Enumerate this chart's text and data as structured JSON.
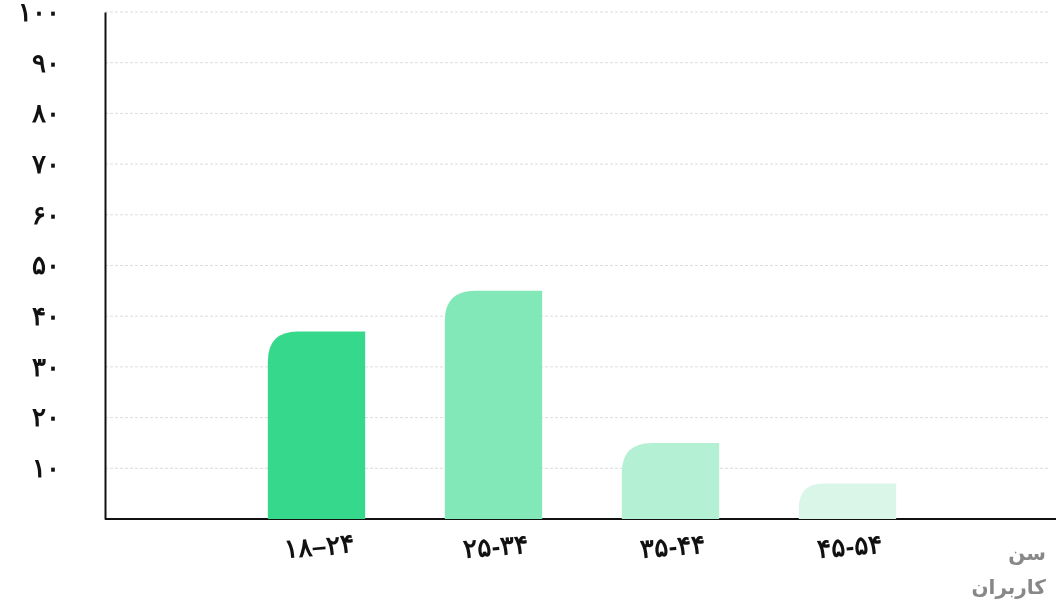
{
  "chart_data": {
    "type": "bar",
    "xlabel": "سن",
    "annotations": [
      "کاربران"
    ],
    "categories": [
      "۱۸–۲۴",
      "۲۵-۳۴",
      "۳۵-۴۴",
      "۴۵-۵۴"
    ],
    "values": [
      37,
      45,
      15,
      7
    ],
    "colors": [
      "#36d98c",
      "#82e8b8",
      "#b3f0d4",
      "#d9f6e8"
    ],
    "ylim": [
      0,
      100
    ],
    "yticks": [
      {
        "value": 10,
        "label": "۱۰"
      },
      {
        "value": 20,
        "label": "۲۰"
      },
      {
        "value": 30,
        "label": "۳۰"
      },
      {
        "value": 40,
        "label": "۴۰"
      },
      {
        "value": 50,
        "label": "۵۰"
      },
      {
        "value": 60,
        "label": "۶۰"
      },
      {
        "value": 70,
        "label": "۷۰"
      },
      {
        "value": 80,
        "label": "۸۰"
      },
      {
        "value": 90,
        "label": "۹۰"
      },
      {
        "value": 100,
        "label": "۱۰۰"
      }
    ],
    "grid": "y"
  }
}
